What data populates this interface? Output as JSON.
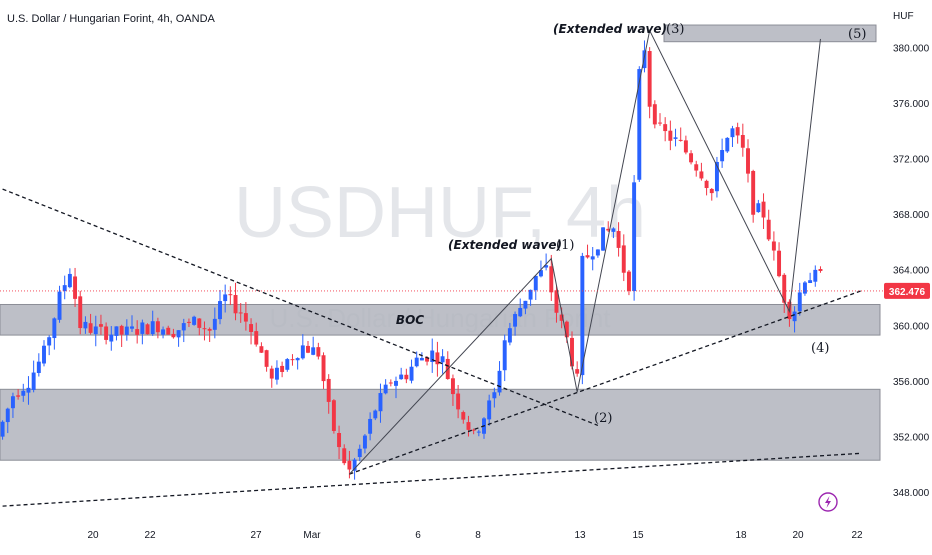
{
  "chart_data": {
    "type": "candlestick",
    "title": "U.S. Dollar / Hungarian Forint, 4h, OANDA",
    "watermark": "USDHUF, 4h",
    "watermark_sub": "U.S. Dollar / Hungarian Forint",
    "currency": "HUF",
    "ylim": [
      346,
      383
    ],
    "y_ticks": [
      "380.000",
      "376.000",
      "372.000",
      "368.000",
      "364.000",
      "360.000",
      "356.000",
      "352.000",
      "348.000"
    ],
    "x_ticks": [
      "20",
      "22",
      "27",
      "Mar",
      "6",
      "8",
      "13",
      "15",
      "18",
      "20",
      "22"
    ],
    "last_price": "362.476",
    "last_price_value": 362.476,
    "colors": {
      "up": "#2962ff",
      "down": "#f23645",
      "zone": "#b2b5be",
      "badge": "#f23645"
    },
    "zones": [
      {
        "label": "BOC",
        "low": 359.3,
        "high": 361.5
      },
      {
        "label": "",
        "low": 350.3,
        "high": 355.4
      },
      {
        "label": "",
        "low": 380.4,
        "high": 381.6
      }
    ],
    "wave_labels": [
      {
        "text": "(1)",
        "note": "(Extended wave)"
      },
      {
        "text": "(2)",
        "note": ""
      },
      {
        "text": "(3)",
        "note": "(Extended wave)"
      },
      {
        "text": "(4)",
        "note": ""
      },
      {
        "text": "(5)",
        "note": ""
      }
    ],
    "wave_path": [
      {
        "bar": 67,
        "price": 349.3
      },
      {
        "bar": 106,
        "price": 364.8
      },
      {
        "bar": 111,
        "price": 355.2
      },
      {
        "bar": 125,
        "price": 381.2
      },
      {
        "bar": 152,
        "price": 361.0
      },
      {
        "bar": 158,
        "price": 380.6
      }
    ],
    "trendlines": [
      {
        "bar1": 0,
        "price1": 369.8,
        "bar2": 115,
        "price2": 352.8
      },
      {
        "bar1": 67,
        "price1": 349.3,
        "bar2": 166,
        "price2": 362.5
      },
      {
        "bar1": 0,
        "price1": 347.0,
        "bar2": 166,
        "price2": 350.8
      }
    ],
    "events": [
      {
        "bar": 156,
        "icon": "lightning-icon"
      }
    ]
  }
}
